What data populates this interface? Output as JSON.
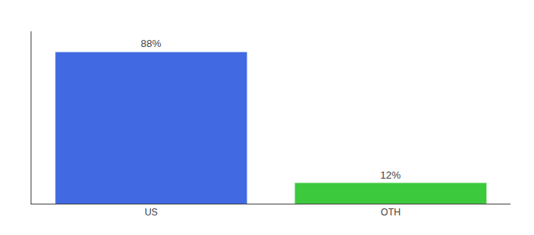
{
  "chart_data": {
    "type": "bar",
    "categories": [
      "US",
      "OTH"
    ],
    "values": [
      88,
      12
    ],
    "value_labels": [
      "88%",
      "12%"
    ],
    "colors": [
      "#4169e1",
      "#3dc93d"
    ],
    "ylim": [
      0,
      100
    ],
    "yticks": [],
    "grid": false,
    "data_labels": true,
    "tick_labels": "x"
  }
}
